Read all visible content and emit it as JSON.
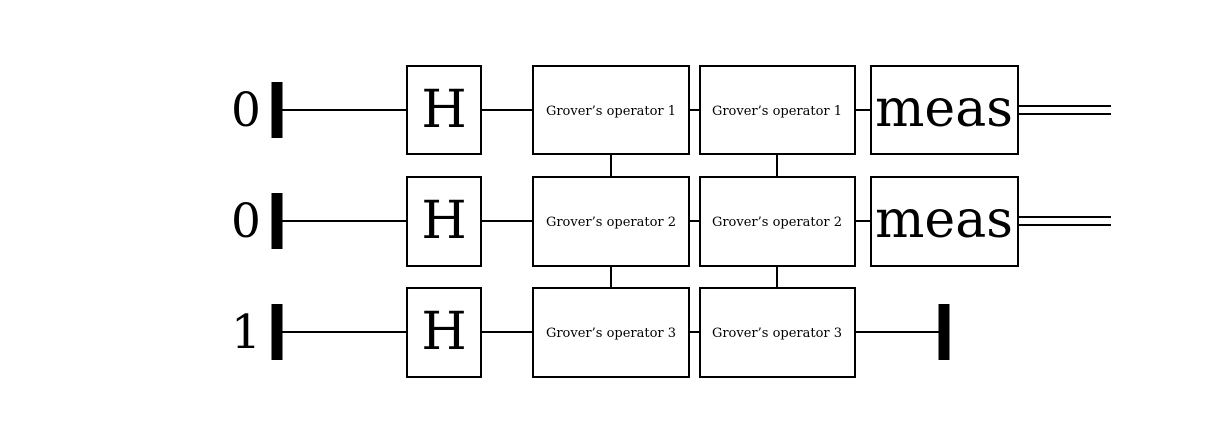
{
  "circuit": {
    "qubits": [
      {
        "init": "0",
        "hadamard": "H",
        "op1": "Grover’s operator 1",
        "op2": "Grover’s operator 1",
        "measure": "meas"
      },
      {
        "init": "0",
        "hadamard": "H",
        "op1": "Grover’s operator 2",
        "op2": "Grover’s operator 2",
        "measure": "meas"
      },
      {
        "init": "1",
        "hadamard": "H",
        "op1": "Grover’s operator 3",
        "op2": "Grover’s operator 3",
        "measure": ""
      }
    ]
  }
}
